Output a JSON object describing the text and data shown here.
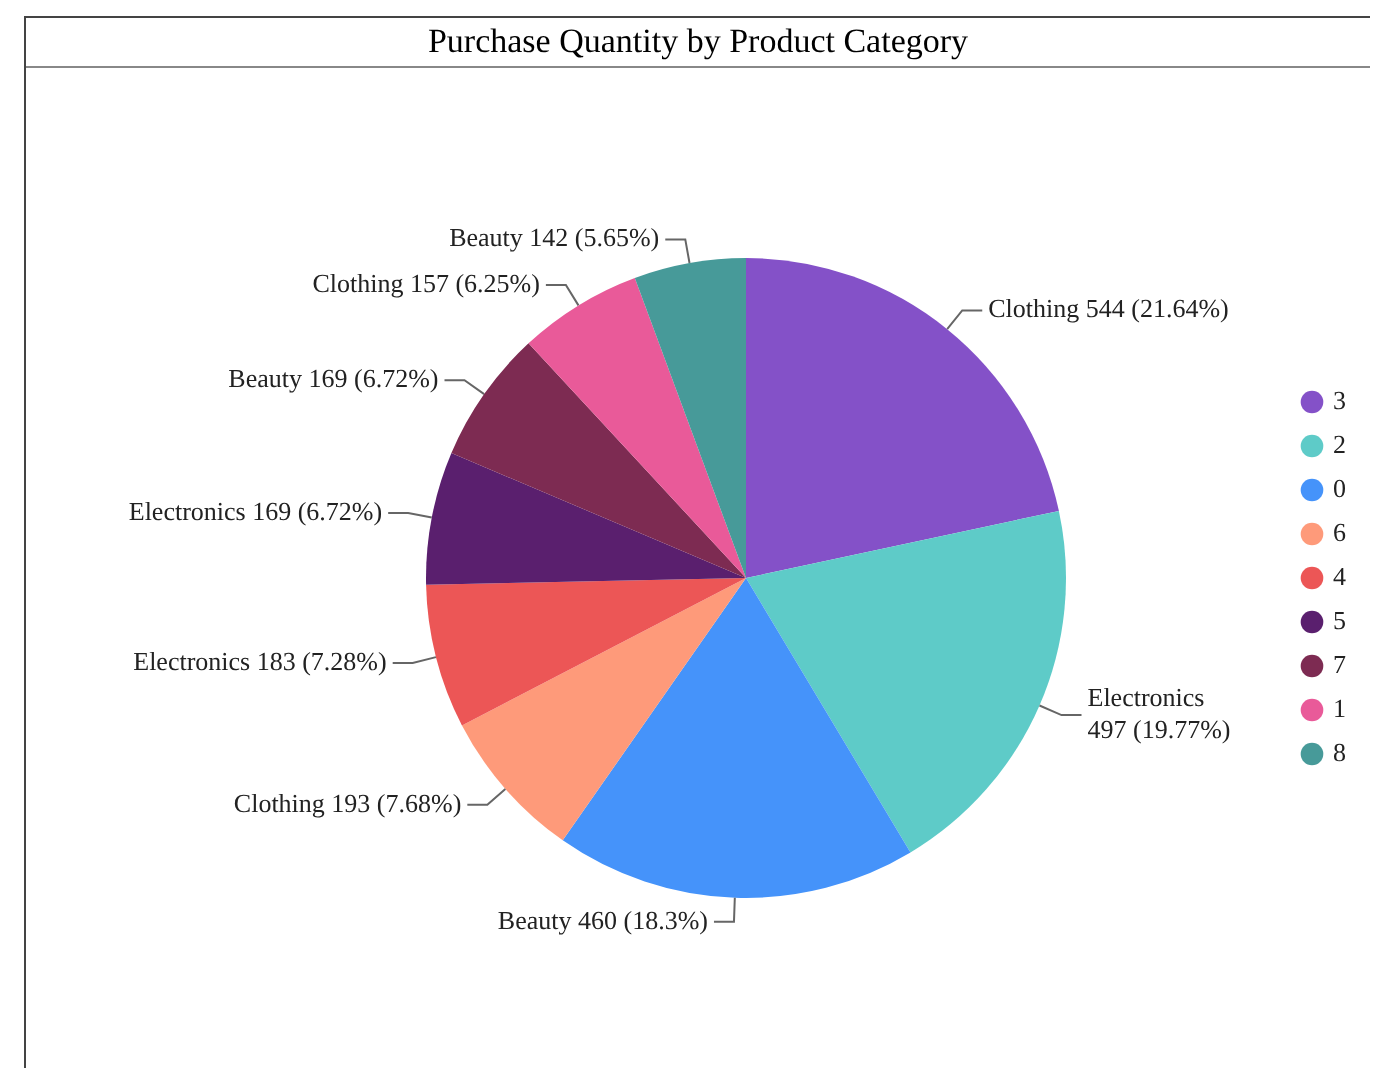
{
  "chart_data": {
    "type": "pie",
    "title": "Purchase Quantity by Product Category",
    "categories": [
      "3",
      "2",
      "0",
      "6",
      "4",
      "5",
      "7",
      "1",
      "8"
    ],
    "values": [
      544,
      497,
      460,
      193,
      183,
      169,
      169,
      157,
      142
    ],
    "colors": [
      "#8451c8",
      "#5ecbc8",
      "#4593fa",
      "#fe9a7a",
      "#ec5656",
      "#5a1f6e",
      "#7d2b52",
      "#e95a99",
      "#479a99"
    ],
    "value_labels": [
      "Clothing 544 (21.64%)",
      "Electronics 497 (19.77%)",
      "Beauty 460 (18.3%)",
      "Clothing 193 (7.68%)",
      "Electronics 183 (7.28%)",
      "Electronics 169 (6.72%)",
      "Beauty 169 (6.72%)",
      "Clothing 157 (6.25%)",
      "Beauty 142 (5.65%)"
    ],
    "legend": "right"
  }
}
